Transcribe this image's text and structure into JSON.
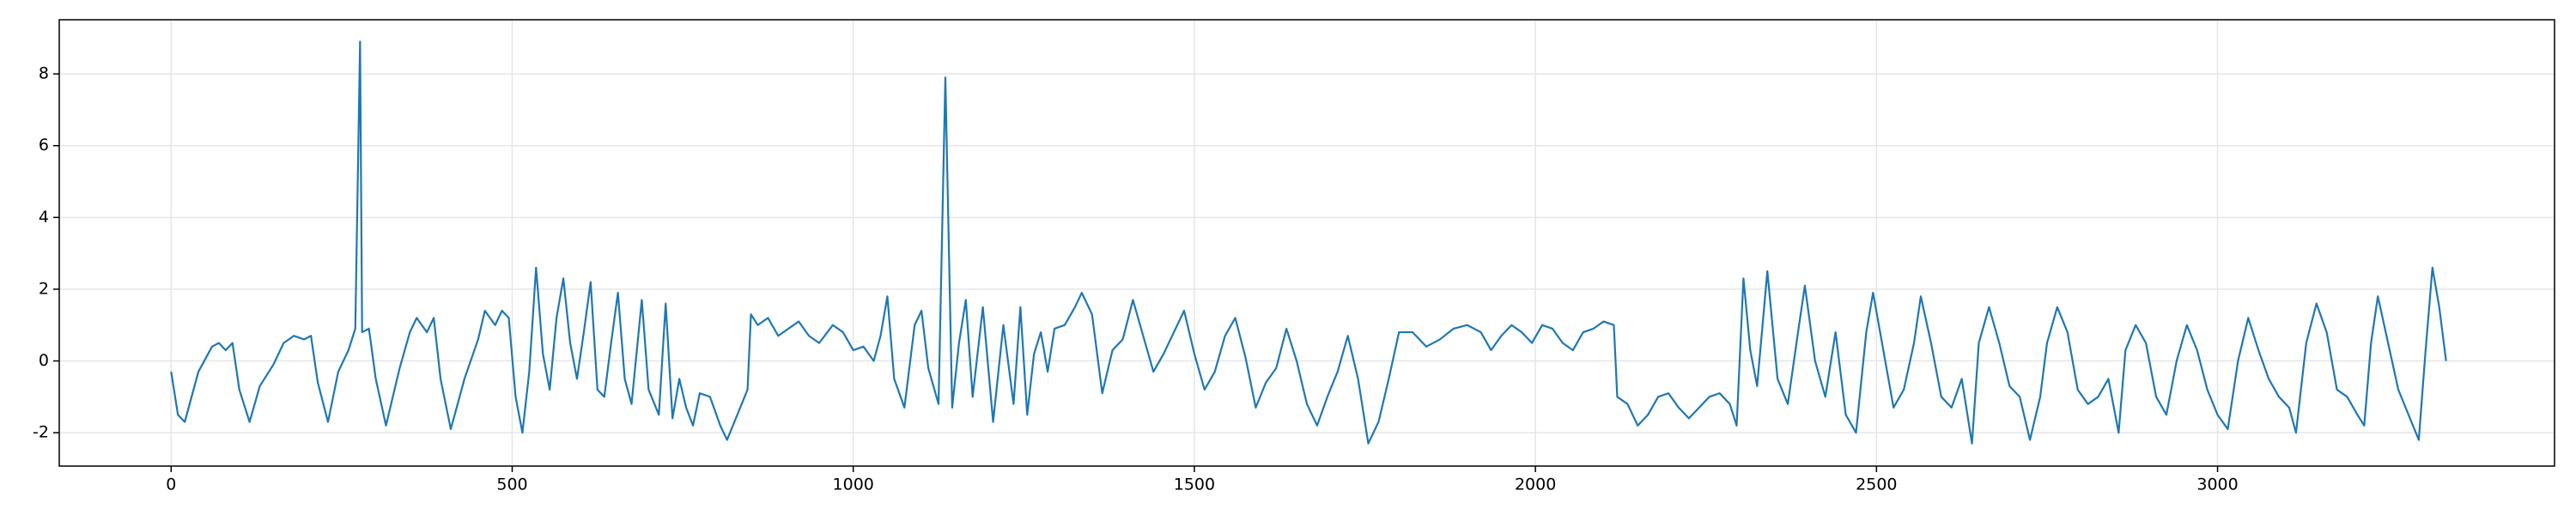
{
  "chart_data": {
    "type": "line",
    "x": [
      0,
      10,
      20,
      40,
      60,
      70,
      80,
      90,
      100,
      115,
      130,
      150,
      165,
      180,
      195,
      205,
      215,
      230,
      245,
      260,
      270,
      277,
      280,
      290,
      300,
      315,
      335,
      350,
      360,
      375,
      385,
      395,
      410,
      430,
      450,
      460,
      475,
      485,
      495,
      505,
      515,
      525,
      535,
      545,
      555,
      565,
      575,
      585,
      595,
      605,
      615,
      625,
      635,
      645,
      655,
      665,
      675,
      690,
      700,
      715,
      725,
      735,
      745,
      755,
      765,
      775,
      790,
      805,
      815,
      830,
      845,
      850,
      860,
      875,
      890,
      905,
      920,
      935,
      950,
      970,
      985,
      1000,
      1015,
      1030,
      1040,
      1050,
      1060,
      1075,
      1090,
      1100,
      1110,
      1125,
      1135,
      1145,
      1155,
      1165,
      1175,
      1190,
      1205,
      1220,
      1235,
      1245,
      1255,
      1265,
      1275,
      1285,
      1295,
      1310,
      1325,
      1335,
      1350,
      1365,
      1380,
      1395,
      1410,
      1425,
      1440,
      1455,
      1470,
      1485,
      1500,
      1515,
      1530,
      1545,
      1560,
      1575,
      1590,
      1605,
      1620,
      1635,
      1650,
      1665,
      1680,
      1695,
      1710,
      1725,
      1740,
      1755,
      1770,
      1785,
      1800,
      1820,
      1840,
      1860,
      1880,
      1900,
      1920,
      1935,
      1950,
      1965,
      1980,
      1995,
      2010,
      2025,
      2040,
      2055,
      2070,
      2085,
      2100,
      2115,
      2120,
      2135,
      2150,
      2165,
      2180,
      2195,
      2210,
      2225,
      2240,
      2255,
      2270,
      2285,
      2295,
      2305,
      2315,
      2325,
      2340,
      2355,
      2370,
      2385,
      2395,
      2410,
      2425,
      2440,
      2455,
      2470,
      2485,
      2495,
      2510,
      2525,
      2540,
      2555,
      2565,
      2580,
      2595,
      2610,
      2625,
      2640,
      2650,
      2665,
      2680,
      2695,
      2710,
      2725,
      2740,
      2750,
      2765,
      2780,
      2795,
      2810,
      2825,
      2840,
      2855,
      2865,
      2880,
      2895,
      2910,
      2925,
      2940,
      2955,
      2970,
      2985,
      3000,
      3015,
      3030,
      3045,
      3060,
      3075,
      3090,
      3105,
      3115,
      3130,
      3145,
      3160,
      3175,
      3190,
      3205,
      3215,
      3225,
      3235,
      3250,
      3265,
      3280,
      3295,
      3305,
      3315,
      3325,
      3335
    ],
    "series": [
      {
        "color": "#1f77b4",
        "values": [
          -0.3,
          -1.5,
          -1.7,
          -0.3,
          0.4,
          0.5,
          0.3,
          0.5,
          -0.8,
          -1.7,
          -0.7,
          -0.1,
          0.5,
          0.7,
          0.6,
          0.7,
          -0.6,
          -1.7,
          -0.3,
          0.3,
          0.9,
          8.9,
          0.8,
          0.9,
          -0.5,
          -1.8,
          -0.2,
          0.8,
          1.2,
          0.8,
          1.2,
          -0.5,
          -1.9,
          -0.5,
          0.6,
          1.4,
          1.0,
          1.4,
          1.2,
          -1.0,
          -2.0,
          -0.3,
          2.6,
          0.2,
          -0.8,
          1.2,
          2.3,
          0.5,
          -0.5,
          0.8,
          2.2,
          -0.8,
          -1.0,
          0.5,
          1.9,
          -0.5,
          -1.2,
          1.7,
          -0.8,
          -1.5,
          1.6,
          -1.6,
          -0.5,
          -1.3,
          -1.8,
          -0.9,
          -1.0,
          -1.8,
          -2.2,
          -1.5,
          -0.8,
          1.3,
          1.0,
          1.2,
          0.7,
          0.9,
          1.1,
          0.7,
          0.5,
          1.0,
          0.8,
          0.3,
          0.4,
          0.0,
          0.7,
          1.8,
          -0.5,
          -1.3,
          1.0,
          1.4,
          -0.2,
          -1.2,
          7.9,
          -1.3,
          0.5,
          1.7,
          -1.0,
          1.5,
          -1.7,
          1.0,
          -1.2,
          1.5,
          -1.5,
          0.2,
          0.8,
          -0.3,
          0.9,
          1.0,
          1.5,
          1.9,
          1.3,
          -0.9,
          0.3,
          0.6,
          1.7,
          0.7,
          -0.3,
          0.2,
          0.8,
          1.4,
          0.2,
          -0.8,
          -0.3,
          0.7,
          1.2,
          0.1,
          -1.3,
          -0.6,
          -0.2,
          0.9,
          0.0,
          -1.2,
          -1.8,
          -1.0,
          -0.3,
          0.7,
          -0.5,
          -2.3,
          -1.7,
          -0.5,
          0.8,
          0.8,
          0.4,
          0.6,
          0.9,
          1.0,
          0.8,
          0.3,
          0.7,
          1.0,
          0.8,
          0.5,
          1.0,
          0.9,
          0.5,
          0.3,
          0.8,
          0.9,
          1.1,
          1.0,
          -1.0,
          -1.2,
          -1.8,
          -1.5,
          -1.0,
          -0.9,
          -1.3,
          -1.6,
          -1.3,
          -1.0,
          -0.9,
          -1.2,
          -1.8,
          2.3,
          0.3,
          -0.7,
          2.5,
          -0.5,
          -1.2,
          0.8,
          2.1,
          0.0,
          -1.0,
          0.8,
          -1.5,
          -2.0,
          0.8,
          1.9,
          0.3,
          -1.3,
          -0.8,
          0.5,
          1.8,
          0.5,
          -1.0,
          -1.3,
          -0.5,
          -2.3,
          0.5,
          1.5,
          0.5,
          -0.7,
          -1.0,
          -2.2,
          -1.0,
          0.5,
          1.5,
          0.8,
          -0.8,
          -1.2,
          -1.0,
          -0.5,
          -2.0,
          0.3,
          1.0,
          0.5,
          -1.0,
          -1.5,
          0.0,
          1.0,
          0.3,
          -0.8,
          -1.5,
          -1.9,
          0.0,
          1.2,
          0.3,
          -0.5,
          -1.0,
          -1.3,
          -2.0,
          0.5,
          1.6,
          0.8,
          -0.8,
          -1.0,
          -1.5,
          -1.8,
          0.5,
          1.8,
          0.5,
          -0.8,
          -1.5,
          -2.2,
          0.3,
          2.6,
          1.5,
          0.0
        ]
      }
    ],
    "xlim": [
      -164,
      3494
    ],
    "ylim": [
      -2.93,
      9.51
    ],
    "xticks": [
      0,
      500,
      1000,
      1500,
      2000,
      2500,
      3000
    ],
    "yticks": [
      -2,
      0,
      2,
      4,
      6,
      8
    ],
    "grid": true
  }
}
